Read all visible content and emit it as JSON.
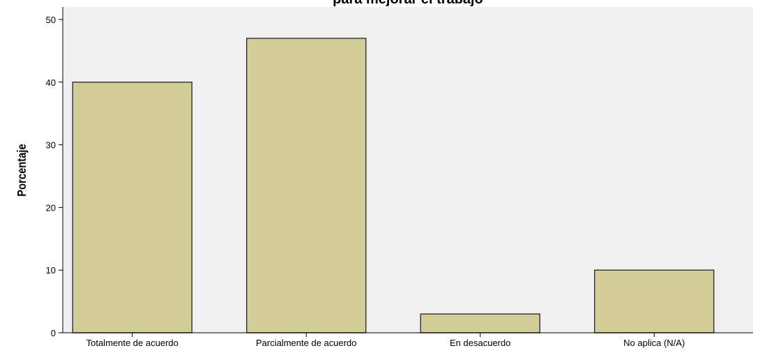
{
  "chart_data": {
    "type": "bar",
    "title": "para mejorar el trabajo",
    "xlabel": "",
    "ylabel": "Porcentaje",
    "categories": [
      "Totalmente de acuerdo",
      "Parcialmente de acuerdo",
      "En desacuerdo",
      "No aplica (N/A)"
    ],
    "values": [
      40,
      47,
      3,
      10
    ],
    "ylim": [
      0,
      52
    ],
    "yticks": [
      "0",
      "10",
      "20",
      "30",
      "40",
      "50"
    ],
    "grid": false,
    "legend": "none",
    "colors": {
      "plot_background": "#f0f0f0",
      "bar_fill": "#d3ce97",
      "bar_stroke": "#3c3c3c"
    }
  }
}
